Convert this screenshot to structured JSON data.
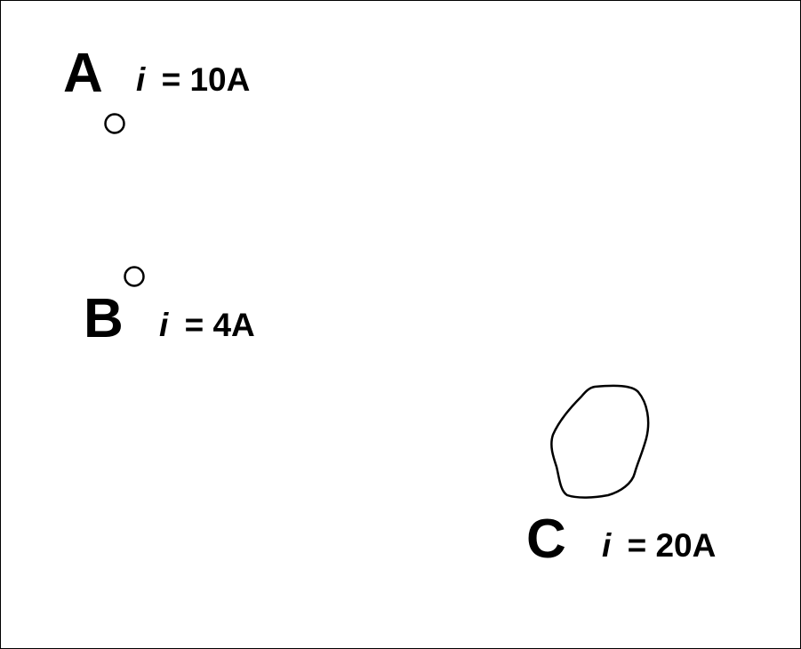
{
  "loops": [
    {
      "letter": "A",
      "symbol": "i",
      "value": "= 10A"
    },
    {
      "letter": "B",
      "symbol": "i",
      "value": "= 4A"
    },
    {
      "letter": "C",
      "symbol": "i",
      "value": "= 20A"
    }
  ]
}
